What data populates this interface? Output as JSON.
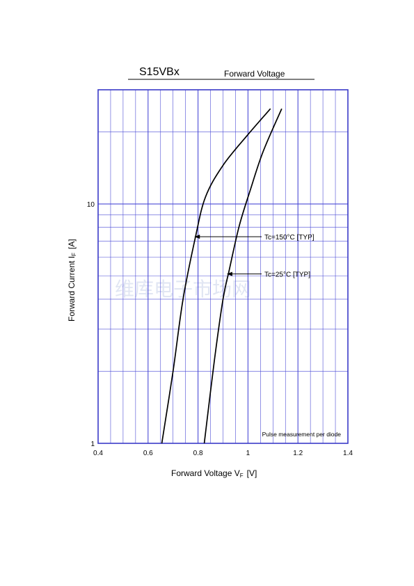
{
  "header": {
    "part_number": "S15VBx",
    "chart_name": "Forward Voltage"
  },
  "watermark": "维库电子市场网",
  "chart_data": {
    "type": "line",
    "title": "S15VBx Forward Voltage",
    "xlabel": {
      "main": "Forward Voltage  V",
      "sub": "F",
      "unit": "[V]"
    },
    "ylabel": {
      "main": "Forward Current  I",
      "sub": "F",
      "unit": "[A]"
    },
    "xlim": [
      0.4,
      1.4
    ],
    "ylim": [
      1,
      30
    ],
    "yscale": "log",
    "grid": true,
    "x_ticks": [
      {
        "value": 0.4,
        "label": "0.4"
      },
      {
        "value": 0.6,
        "label": "0.6"
      },
      {
        "value": 0.8,
        "label": "0.8"
      },
      {
        "value": 1.0,
        "label": "1"
      },
      {
        "value": 1.2,
        "label": "1.2"
      },
      {
        "value": 1.4,
        "label": "1.4"
      }
    ],
    "y_ticks": [
      {
        "value": 1,
        "label": "1"
      },
      {
        "value": 10,
        "label": "10"
      }
    ],
    "series": [
      {
        "name": "Tc=150°C [TYP]",
        "points": [
          [
            0.655,
            1
          ],
          [
            0.7,
            2
          ],
          [
            0.74,
            4
          ],
          [
            0.79,
            7.3
          ],
          [
            0.83,
            10.7
          ],
          [
            0.9,
            14.5
          ],
          [
            1.0,
            19.5
          ],
          [
            1.09,
            25
          ]
        ]
      },
      {
        "name": "Tc=25°C [TYP]",
        "points": [
          [
            0.825,
            1
          ],
          [
            0.865,
            2.2
          ],
          [
            0.9,
            4
          ],
          [
            0.925,
            5.3
          ],
          [
            0.965,
            8.1
          ],
          [
            1.01,
            11.5
          ],
          [
            1.06,
            16.5
          ],
          [
            1.135,
            25
          ]
        ]
      }
    ],
    "annotations": [
      {
        "text": "Tc=150°C [TYP]",
        "points_to": [
          0.785,
          7.3
        ]
      },
      {
        "text": "Tc=25°C [TYP]",
        "points_to": [
          0.915,
          5.1
        ]
      }
    ],
    "note": "Pulse measurement per diode",
    "colors": {
      "grid": "#4b4bd6",
      "frame": "#3a3ac8",
      "curve": "#000000"
    }
  }
}
